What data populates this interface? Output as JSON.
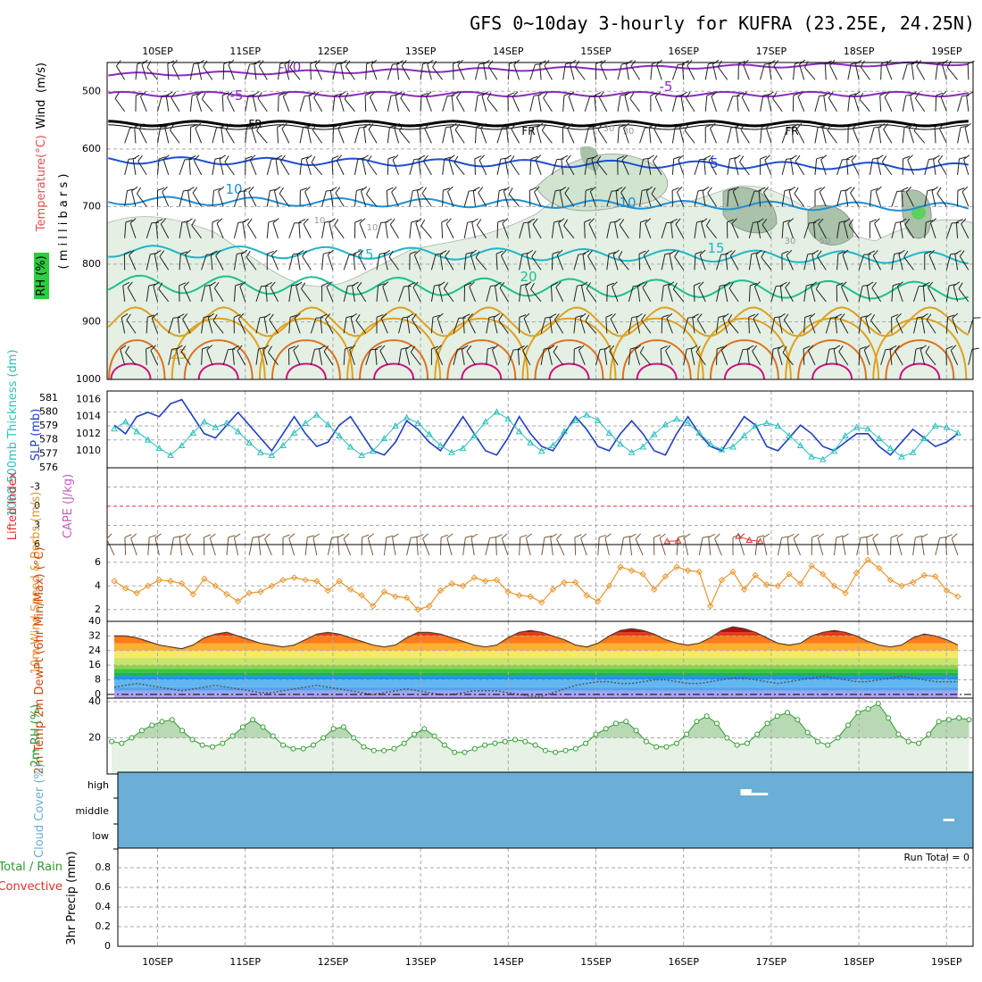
{
  "title": "GFS 0~10day 3-hourly for KUFRA (23.25E, 24.25N)",
  "date_labels": [
    "10SEP",
    "11SEP",
    "12SEP",
    "13SEP",
    "14SEP",
    "15SEP",
    "16SEP",
    "17SEP",
    "18SEP",
    "19SEP"
  ],
  "colors": {
    "grid": "#aaaaaa",
    "frame": "#000000",
    "slp": "#1f3fbf",
    "thickness": "#2bbfbf",
    "wind10": "#e8962e",
    "rh": "#2e9a2e",
    "cloud": "#6baed6",
    "lifted": "#e03030",
    "cape": "#c060c0",
    "iso_m10": "#8c2bbd",
    "iso_m5": "#8c2bbd",
    "iso_0": "#000000",
    "iso_5": "#1e4fd6",
    "iso_10": "#1e90d6",
    "iso_15": "#20b5c8",
    "iso_20": "#1fbf8f",
    "iso_25": "#e0a020",
    "iso_30": "#e07020",
    "iso_35": "#d01080"
  },
  "chart_data": [
    {
      "type": "contour",
      "panel": "upper-air",
      "ylabel_parts": [
        "RH (%)",
        "Temperature",
        "(°C)",
        "Wind",
        "(m/s)"
      ],
      "ylabel_axis": "( m i l l i b a r s )",
      "y_ticks": [
        500,
        600,
        700,
        800,
        900,
        1000
      ],
      "ylim": [
        1000,
        450
      ],
      "isotherm_labels": [
        "-10",
        "-5",
        "FR",
        "-5",
        "10",
        "15",
        "20",
        "25",
        "5",
        "10",
        "15",
        "FR",
        "FR"
      ],
      "rh_labels": [
        "30",
        "10",
        "30",
        "10",
        "30",
        "50"
      ],
      "isotherms_c": [
        -10,
        -5,
        0,
        5,
        10,
        15,
        20,
        25,
        30,
        35
      ]
    },
    {
      "type": "line",
      "panel": "slp-thickness",
      "ylabel_left": "1000-500mb Thickness (dm)",
      "ylabel_right": "SLP (mb)",
      "left_ticks": [
        576,
        577,
        578,
        579,
        580,
        581
      ],
      "right_ticks": [
        1010,
        1012,
        1014,
        1016
      ],
      "series": [
        {
          "name": "SLP (mb)",
          "values": [
            1013,
            1012,
            1014,
            1014.5,
            1014,
            1015.5,
            1016,
            1014,
            1012,
            1011.5,
            1013,
            1014.5,
            1013,
            1011.5,
            1010,
            1012,
            1014,
            1012,
            1010.5,
            1011,
            1013,
            1014,
            1012,
            1010,
            1009.5,
            1011,
            1013.5,
            1012.5,
            1011,
            1010,
            1012,
            1014,
            1012,
            1010,
            1009.5,
            1011.5,
            1014,
            1012,
            1010.5,
            1010,
            1012,
            1014,
            1012.5,
            1010.5,
            1010,
            1012,
            1013.5,
            1012,
            1010,
            1009.5,
            1012,
            1014,
            1012,
            1010.5,
            1010,
            1012,
            1014,
            1013,
            1010.5,
            1010,
            1011.5,
            1013,
            1012,
            1010.5,
            1010,
            1011,
            1012,
            1012,
            1010.5,
            1009.5,
            1011,
            1012.5,
            1011.5,
            1010.5,
            1011,
            1012
          ],
          "color": "#1f3fbf"
        },
        {
          "name": "Thickness (dm)",
          "values": [
            578.8,
            579.3,
            578.6,
            578.0,
            577.4,
            576.9,
            577.6,
            578.5,
            579.3,
            578.9,
            579.2,
            578.6,
            577.8,
            577.1,
            576.9,
            577.6,
            578.5,
            579.2,
            579.8,
            579.1,
            578.3,
            577.5,
            576.9,
            577.2,
            578.1,
            579.0,
            579.6,
            579.2,
            578.4,
            577.6,
            577.1,
            577.4,
            578.3,
            579.3,
            580.0,
            579.5,
            578.6,
            577.8,
            577.2,
            577.6,
            578.6,
            579.4,
            579.8,
            579.4,
            578.5,
            577.7,
            577.1,
            577.5,
            578.4,
            579.1,
            579.5,
            579.2,
            578.5,
            577.7,
            577.3,
            577.5,
            578.3,
            579.0,
            579.2,
            579.0,
            578.3,
            577.6,
            576.8,
            576.6,
            577.2,
            578.3,
            578.9,
            578.8,
            578.1,
            577.4,
            576.8,
            577.1,
            578.1,
            579.0,
            578.9,
            578.5
          ],
          "color": "#2bbfbf"
        }
      ]
    },
    {
      "type": "line",
      "panel": "lifted-index-cape",
      "ylabel_left": "Lifted Index",
      "ylabel_right": "CAPE (J/kg)",
      "left_ticks_text": [
        "-3",
        "0",
        "3",
        "6"
      ],
      "left_ticks_vals": [
        -3,
        0,
        3,
        6
      ],
      "ylim": [
        -6,
        6
      ],
      "note": "lifted index values remain off-scale except a few near +6",
      "lifted_visible": [
        {
          "t": 46.5,
          "v": 5.5
        },
        {
          "t": 47.5,
          "v": 5.4
        },
        {
          "t": 53,
          "v": 4.7
        },
        {
          "t": 54,
          "v": 5.3
        },
        {
          "t": 55,
          "v": 5.5
        }
      ]
    },
    {
      "type": "line",
      "panel": "wind10m",
      "ylabel": "10m Wind Speed & Barbs (m/s)",
      "y_ticks": [
        2,
        4,
        6
      ],
      "ylim": [
        1,
        7.5
      ],
      "series": [
        {
          "name": "10m Wind Speed",
          "values": [
            4.4,
            3.8,
            3.4,
            4.0,
            4.5,
            4.4,
            4.2,
            3.3,
            4.6,
            4.0,
            3.3,
            2.7,
            3.4,
            3.5,
            4.0,
            4.5,
            4.7,
            4.5,
            4.4,
            3.6,
            4.4,
            3.7,
            3.2,
            2.3,
            3.5,
            3.1,
            3.0,
            2.0,
            2.3,
            3.6,
            4.2,
            4.0,
            4.7,
            4.4,
            4.5,
            3.5,
            3.2,
            3.1,
            2.6,
            3.7,
            4.3,
            4.3,
            3.2,
            2.7,
            4.0,
            5.6,
            5.3,
            5.0,
            3.7,
            4.8,
            5.6,
            5.3,
            5.2,
            2.3,
            4.5,
            5.2,
            3.7,
            4.9,
            4.1,
            4.0,
            5.0,
            4.2,
            5.7,
            5.0,
            4.0,
            3.4,
            5.1,
            6.2,
            5.5,
            4.5,
            4.0,
            4.3,
            4.9,
            4.8,
            3.6,
            3.1
          ],
          "color": "#e8962e"
        }
      ]
    },
    {
      "type": "area",
      "panel": "temp-dewpt",
      "ylabel": "2m Temp 2m DewPt (6hr Min/Max) (°C)",
      "y_ticks": [
        0,
        8,
        16,
        24,
        32,
        40
      ],
      "ylim": [
        -2,
        40
      ],
      "series": [
        {
          "name": "2m Temp",
          "values": [
            32,
            32,
            31,
            29,
            27,
            26,
            25,
            27,
            31,
            33,
            34,
            32,
            30,
            28,
            27,
            26,
            27,
            30,
            33,
            34,
            33,
            31,
            29,
            27,
            26,
            27,
            31,
            34,
            34,
            33,
            31,
            29,
            27,
            26,
            27,
            31,
            34,
            35,
            34,
            32,
            30,
            27,
            26,
            28,
            32,
            35,
            36,
            35,
            33,
            30,
            28,
            27,
            28,
            31,
            35,
            37,
            36,
            34,
            31,
            28,
            27,
            28,
            32,
            34,
            35,
            34,
            32,
            29,
            27,
            26,
            27,
            31,
            33,
            32,
            30,
            27
          ],
          "color": "#c84a10"
        },
        {
          "name": "2m DewPt",
          "values": [
            4,
            5,
            6,
            5,
            4,
            3,
            2,
            3,
            4,
            5,
            4,
            3,
            2,
            1,
            1,
            2,
            3,
            4,
            5,
            4,
            3,
            2,
            1,
            0,
            1,
            2,
            3,
            2,
            1,
            0,
            0,
            1,
            2,
            2,
            2,
            1,
            0,
            -1,
            -1,
            1,
            3,
            5,
            6,
            7,
            7,
            6,
            6,
            7,
            8,
            8,
            7,
            6,
            6,
            7,
            8,
            9,
            9,
            8,
            7,
            6,
            7,
            8,
            9,
            10,
            9,
            8,
            7,
            7,
            8,
            9,
            10,
            9,
            8,
            7,
            7,
            7
          ],
          "color": "#555555"
        }
      ]
    },
    {
      "type": "area",
      "panel": "rh2m",
      "ylabel": "2m RH (%)",
      "y_ticks": [
        20,
        40
      ],
      "ylim": [
        0,
        42
      ],
      "series": [
        {
          "name": "2m RH",
          "values": [
            18,
            17,
            20,
            24,
            27,
            29,
            30,
            24,
            19,
            16,
            15,
            17,
            21,
            26,
            30,
            26,
            21,
            16,
            14,
            14,
            16,
            20,
            25,
            26,
            20,
            15,
            13,
            13,
            14,
            17,
            22,
            25,
            21,
            16,
            12,
            12,
            14,
            16,
            17,
            18,
            19,
            18,
            16,
            13,
            12,
            13,
            14,
            17,
            22,
            25,
            28,
            29,
            24,
            18,
            15,
            15,
            17,
            22,
            29,
            32,
            28,
            20,
            16,
            17,
            22,
            28,
            32,
            34,
            30,
            23,
            18,
            16,
            20,
            27,
            34,
            36,
            39,
            31,
            22,
            18,
            17,
            22,
            29,
            30,
            31,
            30
          ],
          "color": "#2e9a2e"
        }
      ]
    },
    {
      "type": "heatmap",
      "panel": "cloud-cover",
      "ylabel": "Cloud Cover (%)",
      "layers": [
        "high",
        "middle",
        "low"
      ],
      "white_patches": [
        {
          "t_from": 54.5,
          "t_to": 55.5,
          "layer": "high"
        },
        {
          "t_from": 55.5,
          "t_to": 57,
          "layer": "high"
        },
        {
          "t_from": 73,
          "t_to": 74,
          "layer": "middle"
        }
      ]
    },
    {
      "type": "bar",
      "panel": "precip",
      "ylabel": "3hr Precip (mm)",
      "legend": [
        "Total / Rain",
        "Convective"
      ],
      "annotation": "Run Total = 0",
      "y_ticks": [
        0,
        0.2,
        0.4,
        0.6,
        0.8
      ],
      "ylim": [
        0,
        1
      ],
      "values": []
    }
  ]
}
